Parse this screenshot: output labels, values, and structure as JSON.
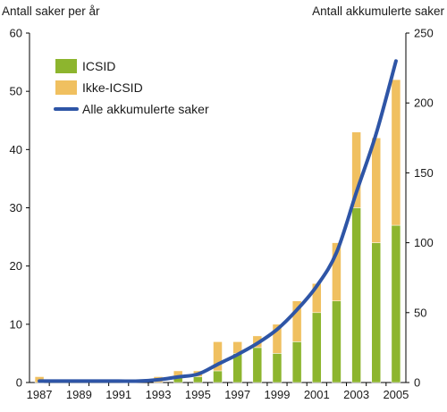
{
  "chart_data": {
    "type": "bar",
    "stacked": true,
    "title": "",
    "ylabel_left": "Antall saker per år",
    "ylabel_right": "Antall akkumulerte saker",
    "x": [
      "1987",
      "1988",
      "1989",
      "1990",
      "1991",
      "1992",
      "1993",
      "1994",
      "1995",
      "1996",
      "1997",
      "1998",
      "1999",
      "2000",
      "2001",
      "2002",
      "2003",
      "2004",
      "2005"
    ],
    "x_tick_labels": [
      "1987",
      "1989",
      "1991",
      "1993",
      "1995",
      "1997",
      "1999",
      "2001",
      "2003",
      "2005"
    ],
    "ylim_left": [
      0,
      60
    ],
    "yticks_left": [
      0,
      10,
      20,
      30,
      40,
      50,
      60
    ],
    "ylim_right": [
      0,
      250
    ],
    "yticks_right": [
      0,
      50,
      100,
      150,
      200,
      250
    ],
    "grid": false,
    "legend_position": "top-left",
    "series": [
      {
        "name": "ICSID",
        "kind": "bar",
        "axis": "left",
        "color": "#8db52e",
        "values": [
          0,
          0,
          0,
          0,
          0,
          0,
          0,
          1,
          1,
          2,
          5,
          6,
          5,
          7,
          12,
          14,
          30,
          24,
          27
        ]
      },
      {
        "name": "Ikke-ICSID",
        "kind": "bar",
        "axis": "left",
        "color": "#f0c060",
        "values": [
          1,
          0,
          0,
          0,
          0,
          0,
          1,
          1,
          1,
          5,
          2,
          2,
          5,
          7,
          5,
          10,
          13,
          18,
          25
        ]
      },
      {
        "name": "Alle akkumulerte saker",
        "kind": "line",
        "axis": "right",
        "color": "#2e55a6",
        "values": [
          1,
          1,
          1,
          1,
          1,
          1,
          2,
          4,
          6,
          13,
          20,
          28,
          38,
          52,
          69,
          93,
          136,
          178,
          230
        ]
      }
    ]
  }
}
